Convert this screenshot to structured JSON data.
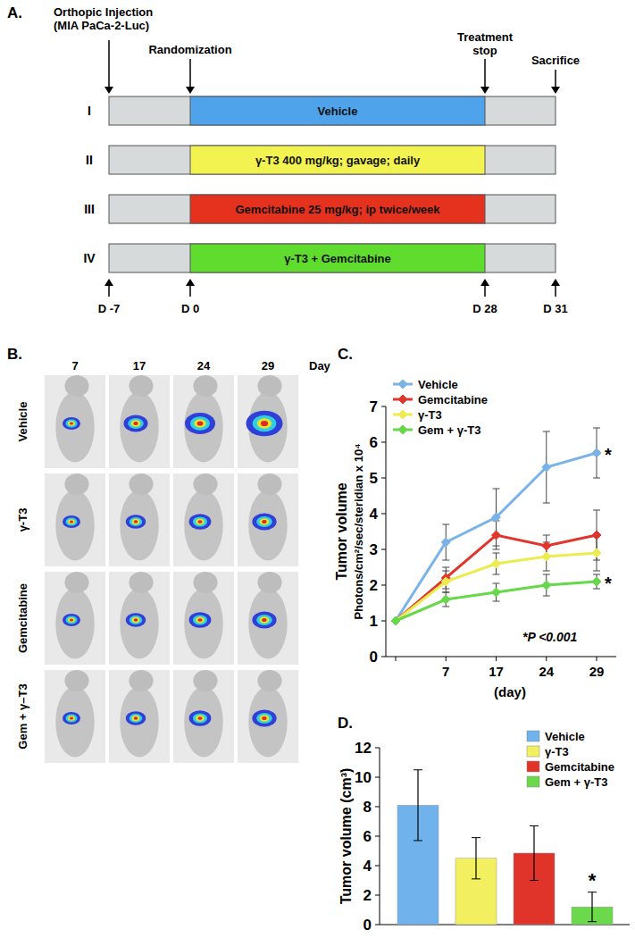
{
  "panel_labels": {
    "a": "A.",
    "b": "B.",
    "c": "C.",
    "d": "D."
  },
  "timeline": {
    "events": [
      {
        "lines": [
          "Orthopic Injection",
          "(MIA PaCa-2-Luc)"
        ],
        "day_label": "D -7"
      },
      {
        "lines": [
          "Randomization"
        ],
        "day_label": "D 0"
      },
      {
        "lines": [
          "Treatment",
          "stop"
        ],
        "day_label": "D 28"
      },
      {
        "lines": [
          "Sacrifice"
        ],
        "day_label": "D 31"
      }
    ],
    "arms": [
      {
        "numeral": "I",
        "label": "Vehicle",
        "color": "#4ea3ea"
      },
      {
        "numeral": "II",
        "label": "γ-T3 400 mg/kg; gavage; daily",
        "color": "#f2f250"
      },
      {
        "numeral": "III",
        "label": "Gemcitabine 25 mg/kg; ip twice/week",
        "color": "#e4321f"
      },
      {
        "numeral": "IV",
        "label": "γ-T3 + Gemcitabine",
        "color": "#5fdc2e"
      }
    ]
  },
  "imaging": {
    "day_label": "Day",
    "days": [
      7,
      17,
      24,
      29
    ],
    "rows": [
      "Vehicle",
      "γ-T3",
      "Gemcitabine",
      "Gem + γ–T3"
    ]
  },
  "chart_data": [
    {
      "type": "line",
      "y_label": [
        "Tumor volume",
        "Photons/cm²/sec/steridian x 10⁴"
      ],
      "x_label": "(day)",
      "categories": [
        null,
        "7",
        "17",
        "24",
        "29"
      ],
      "ylim": [
        0,
        7
      ],
      "yticks": [
        0,
        1,
        2,
        3,
        4,
        5,
        6,
        7
      ],
      "legend": "upper-left",
      "marker": "diamond",
      "annotations": [
        "*P <0.001"
      ],
      "series": [
        {
          "name": "Vehicle",
          "color": "#7ab3e8",
          "values": [
            1,
            3.2,
            3.9,
            5.3,
            5.7
          ],
          "errors": [
            0,
            0.5,
            0.8,
            1.0,
            0.7
          ],
          "significance": "*"
        },
        {
          "name": "Gemcitabine",
          "color": "#e0362c",
          "values": [
            1,
            2.2,
            3.4,
            3.1,
            3.4
          ],
          "errors": [
            0,
            0.3,
            0.4,
            0.3,
            0.7
          ]
        },
        {
          "name": "γ-T3",
          "color": "#ecec50",
          "values": [
            1,
            2.1,
            2.6,
            2.8,
            2.9
          ],
          "errors": [
            0,
            0.3,
            0.3,
            0.4,
            0.5
          ]
        },
        {
          "name": "Gem + γ-T3",
          "color": "#66d84a",
          "values": [
            1,
            1.6,
            1.8,
            2.0,
            2.1
          ],
          "errors": [
            0,
            0.2,
            0.25,
            0.3,
            0.2
          ],
          "significance": "*"
        }
      ]
    },
    {
      "type": "bar",
      "y_label": "Tumor volume (cm³)",
      "categories": [
        null
      ],
      "ylim": [
        0,
        12
      ],
      "yticks": [
        0,
        2,
        4,
        6,
        8,
        10,
        12
      ],
      "legend": "upper-right",
      "series": [
        {
          "name": "Vehicle",
          "color": "#6fb2ec",
          "values": [
            8.1
          ],
          "errors": [
            2.4
          ]
        },
        {
          "name": "γ-T3",
          "color": "#f2f060",
          "values": [
            4.5
          ],
          "errors": [
            1.4
          ]
        },
        {
          "name": "Gemcitabine",
          "color": "#e0342a",
          "values": [
            4.85
          ],
          "errors": [
            1.85
          ]
        },
        {
          "name": "Gem + γ-T3",
          "color": "#6cd84c",
          "values": [
            1.2
          ],
          "errors": [
            1.0
          ],
          "significance": "*"
        }
      ]
    }
  ]
}
